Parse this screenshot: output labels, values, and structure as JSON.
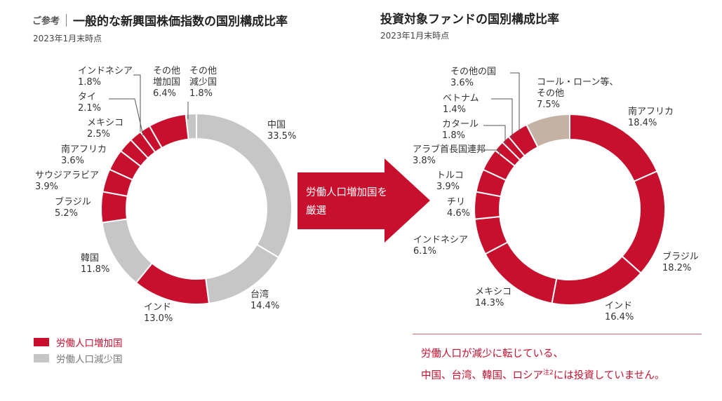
{
  "header": {
    "ref_tag": "ご参考",
    "left_title": "一般的な新興国株価指数の国別構成比率",
    "left_date": "2023年1月末時点",
    "right_title": "投資対象ファンドの国別構成比率",
    "right_date": "2023年1月末時点"
  },
  "arrow": {
    "text": "労働人口増加国を\n厳選"
  },
  "legend": {
    "increase_label": "労働人口増加国",
    "decrease_label": "労働人口減少国"
  },
  "note": {
    "line1": "労働人口が減少に転じている、",
    "line2_main": "中国、台湾、韓国、ロシア",
    "line2_sup": "注2",
    "line2_end": "には投資していません。"
  },
  "colors": {
    "increase": "#c8102e",
    "decrease": "#c6c6c6",
    "other": "#c4b3a5",
    "arrow": "#c8102e"
  },
  "chart_data": [
    {
      "type": "pie",
      "variant": "donut",
      "categories": [
        "中国",
        "台湾",
        "インド",
        "韓国",
        "ブラジル",
        "サウジアラビア",
        "南アフリカ",
        "メキシコ",
        "タイ",
        "インドネシア",
        "その他増加国",
        "その他減少国"
      ],
      "values": [
        33.5,
        14.4,
        13.0,
        11.8,
        5.2,
        3.9,
        3.6,
        2.5,
        2.1,
        1.8,
        6.4,
        1.8
      ],
      "groups": [
        "decrease",
        "decrease",
        "increase",
        "decrease",
        "increase",
        "increase",
        "increase",
        "increase",
        "increase",
        "increase",
        "increase",
        "decrease"
      ],
      "labels": [
        {
          "name": "中国",
          "value": "33.5%"
        },
        {
          "name": "台湾",
          "value": "14.4%"
        },
        {
          "name": "インド",
          "value": "13.0%"
        },
        {
          "name": "韓国",
          "value": "11.8%"
        },
        {
          "name": "ブラジル",
          "value": "5.2%"
        },
        {
          "name": "サウジアラビア",
          "value": "3.9%"
        },
        {
          "name": "南アフリカ",
          "value": "3.6%"
        },
        {
          "name": "メキシコ",
          "value": "2.5%"
        },
        {
          "name": "タイ",
          "value": "2.1%"
        },
        {
          "name": "インドネシア",
          "value": "1.8%"
        },
        {
          "name": "その他\n増加国",
          "value": "6.4%"
        },
        {
          "name": "その他\n減少国",
          "value": "1.8%"
        }
      ]
    },
    {
      "type": "pie",
      "variant": "donut",
      "categories": [
        "南アフリカ",
        "ブラジル",
        "インド",
        "メキシコ",
        "インドネシア",
        "チリ",
        "トルコ",
        "アラブ首長国連邦",
        "カタール",
        "ベトナム",
        "その他の国",
        "コール・ローン等、その他"
      ],
      "values": [
        18.4,
        18.2,
        16.4,
        14.3,
        6.1,
        4.6,
        3.9,
        3.8,
        1.8,
        1.4,
        3.6,
        7.5
      ],
      "groups": [
        "increase",
        "increase",
        "increase",
        "increase",
        "increase",
        "increase",
        "increase",
        "increase",
        "increase",
        "increase",
        "increase",
        "other"
      ],
      "labels": [
        {
          "name": "南アフリカ",
          "value": "18.4%"
        },
        {
          "name": "ブラジル",
          "value": "18.2%"
        },
        {
          "name": "インド",
          "value": "16.4%"
        },
        {
          "name": "メキシコ",
          "value": "14.3%"
        },
        {
          "name": "インドネシア",
          "value": "6.1%"
        },
        {
          "name": "チリ",
          "value": "4.6%"
        },
        {
          "name": "トルコ",
          "value": "3.9%"
        },
        {
          "name": "アラブ首長国連邦",
          "value": "3.8%"
        },
        {
          "name": "カタール",
          "value": "1.8%"
        },
        {
          "name": "ベトナム",
          "value": "1.4%"
        },
        {
          "name": "その他の国",
          "value": "3.6%"
        },
        {
          "name": "コール・ローン等、\nその他",
          "value": "7.5%"
        }
      ]
    }
  ]
}
